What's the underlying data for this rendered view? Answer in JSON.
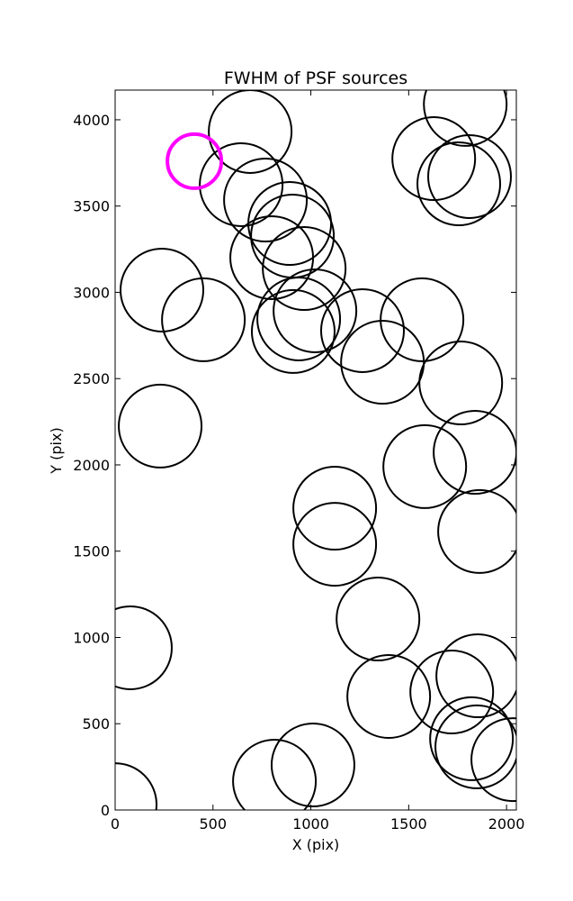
{
  "chart_data": {
    "type": "scatter",
    "title": "FWHM of PSF sources",
    "x_label": "X (pix)",
    "y_label": "Y (pix)",
    "xlim": [
      0,
      2050
    ],
    "ylim": [
      0,
      4172
    ],
    "xticks": [
      0,
      500,
      1000,
      1500,
      2000
    ],
    "yticks": [
      0,
      500,
      1000,
      1500,
      2000,
      2500,
      3000,
      3500,
      4000
    ],
    "series": [
      {
        "color": "#000000",
        "marker_radius": 46,
        "line_width": 2,
        "x": [
          690,
          644,
          768,
          892,
          906,
          800,
          966,
          1021,
          910,
          938,
          1264,
          1366,
          1568,
          1628,
          1756,
          1811,
          1789,
          239,
          451,
          230,
          1766,
          1839,
          1582,
          1862,
          1122,
          1122,
          1343,
          78,
          1398,
          1720,
          1853,
          1821,
          1848,
          2032,
          1011,
          814,
          0
        ],
        "values": [
          3932,
          3624,
          3535,
          3399,
          3326,
          3201,
          3138,
          2893,
          2773,
          2846,
          2778,
          2595,
          2841,
          3775,
          3629,
          3671,
          4089,
          3013,
          2841,
          2225,
          2475,
          2073,
          1990,
          1614,
          1749,
          1540,
          1107,
          940,
          658,
          684,
          778,
          413,
          366,
          292,
          261,
          167,
          31
        ]
      },
      {
        "color": "#ff00ff",
        "marker_radius": 30,
        "line_width": 4,
        "x": [
          405
        ],
        "values": [
          3760
        ]
      }
    ]
  }
}
